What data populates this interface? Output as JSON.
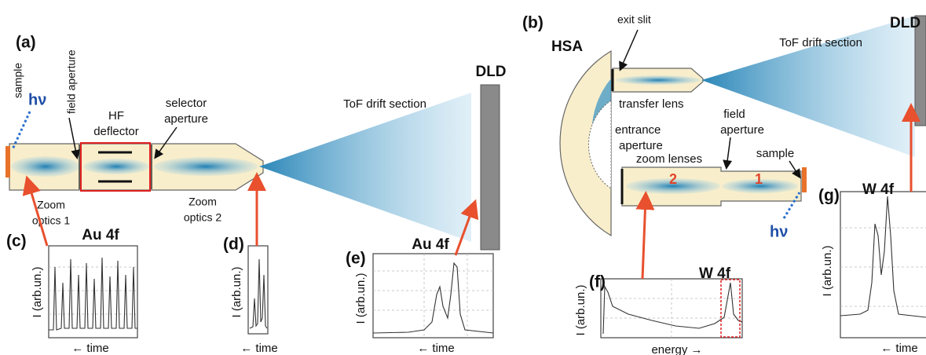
{
  "panel_a": {
    "label": "(a)",
    "sample": "sample",
    "photon": "hν",
    "field_aperture": "field aperture",
    "deflector": [
      "HF",
      "deflector"
    ],
    "selector_aperture": [
      "selector",
      "aperture"
    ],
    "zoom1": [
      "Zoom",
      "optics 1"
    ],
    "zoom2": [
      "Zoom",
      "optics 2"
    ],
    "drift": "ToF drift section",
    "detector": "DLD"
  },
  "panel_b": {
    "label": "(b)",
    "analyzer": "HSA",
    "exit_slit": "exit slit",
    "drift": "ToF drift section",
    "detector": "DLD",
    "transfer_lens": "transfer lens",
    "entrance_aperture": [
      "entrance",
      "aperture"
    ],
    "field_aperture": [
      "field",
      "aperture"
    ],
    "zoom_lenses": "zoom lenses",
    "sample": "sample",
    "lens_2": "2",
    "lens_1": "1",
    "photon": "hν"
  },
  "insets": [
    {
      "label": "(c)",
      "title": "Au 4f",
      "ylabel": "I (arb.un.)",
      "xlabel": "← time"
    },
    {
      "label": "(d)",
      "ylabel": "I (arb.un.)",
      "xlabel": "← time"
    },
    {
      "label": "(e)",
      "title": "Au 4f",
      "ylabel": "I (arb.un.)",
      "xlabel": "← time"
    },
    {
      "label": "(f)",
      "title": "W 4f",
      "ylabel": "I (arb.un.)",
      "xlabel": "energy →"
    },
    {
      "label": "(g)",
      "title": "W 4f",
      "ylabel": "I (arb.un.)",
      "xlabel": "← time"
    }
  ]
}
